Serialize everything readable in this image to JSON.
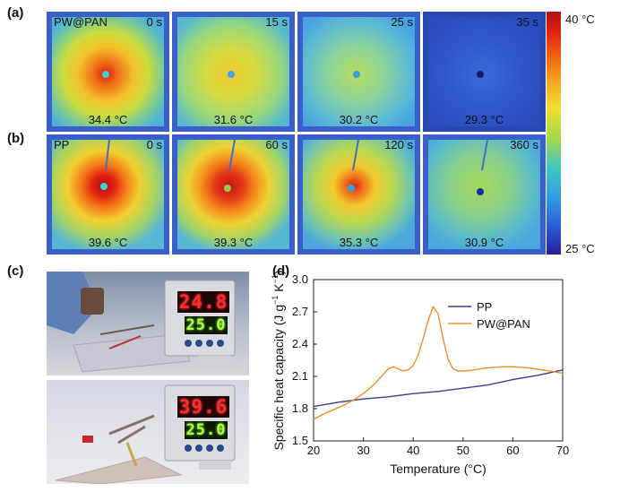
{
  "panels": {
    "a_label": "(a)",
    "b_label": "(b)",
    "c_label": "(c)",
    "d_label": "(d)"
  },
  "row_a": [
    {
      "sample": "PW@PAN",
      "time": "0 s",
      "temp": "34.4 °C"
    },
    {
      "sample": "",
      "time": "15 s",
      "temp": "31.6 °C"
    },
    {
      "sample": "",
      "time": "25 s",
      "temp": "30.2 °C"
    },
    {
      "sample": "",
      "time": "35 s",
      "temp": "29.3 °C"
    }
  ],
  "row_b": [
    {
      "sample": "PP",
      "time": "0 s",
      "temp": "39.6 °C"
    },
    {
      "sample": "",
      "time": "60 s",
      "temp": "39.3 °C"
    },
    {
      "sample": "",
      "time": "120 s",
      "temp": "35.3 °C"
    },
    {
      "sample": "",
      "time": "360 s",
      "temp": "30.9 °C"
    }
  ],
  "colorbar": {
    "max_label": "40 °C",
    "min_label": "25 °C"
  },
  "photos": [
    {
      "red_display": "24.8",
      "green_display": "25.0"
    },
    {
      "red_display": "39.6",
      "green_display": "25.0"
    }
  ],
  "colors": {
    "pp": "#3b3b9a",
    "pwpan": "#f28c28"
  },
  "chart_data": {
    "type": "line",
    "xlabel": "Temperature (°C)",
    "ylabel_parts": [
      "Specific heat capacity (J g",
      "−1",
      " K",
      "−1",
      ")"
    ],
    "xlim": [
      20,
      70
    ],
    "ylim": [
      1.5,
      3.0
    ],
    "xticks": [
      20,
      30,
      40,
      50,
      60,
      70
    ],
    "xtick_labels": [
      "20",
      "30",
      "40",
      "50",
      "60",
      "70"
    ],
    "yticks": [
      1.5,
      1.8,
      2.1,
      2.4,
      2.7,
      3.0
    ],
    "ytick_labels": [
      "1.5",
      "1.8",
      "2.1",
      "2.4",
      "2.7",
      "3.0"
    ],
    "legend_position": "upper-right",
    "series": [
      {
        "name": "PP",
        "color": "#3b3b9a",
        "x": [
          20,
          25,
          30,
          35,
          40,
          45,
          50,
          55,
          60,
          65,
          70
        ],
        "y": [
          1.82,
          1.86,
          1.89,
          1.91,
          1.94,
          1.96,
          1.99,
          2.02,
          2.07,
          2.11,
          2.16
        ]
      },
      {
        "name": "PW@PAN",
        "color": "#f28c28",
        "x": [
          20,
          22,
          24,
          26,
          28,
          30,
          32,
          34,
          35,
          36,
          37,
          38,
          39,
          40,
          41,
          42,
          43,
          44,
          45,
          46,
          47,
          48,
          49,
          50,
          52,
          55,
          58,
          60,
          63,
          66,
          70
        ],
        "y": [
          1.7,
          1.75,
          1.79,
          1.83,
          1.88,
          1.94,
          2.02,
          2.12,
          2.17,
          2.19,
          2.17,
          2.15,
          2.16,
          2.2,
          2.3,
          2.45,
          2.62,
          2.75,
          2.68,
          2.45,
          2.26,
          2.17,
          2.15,
          2.15,
          2.16,
          2.18,
          2.19,
          2.19,
          2.18,
          2.16,
          2.13
        ]
      }
    ]
  }
}
